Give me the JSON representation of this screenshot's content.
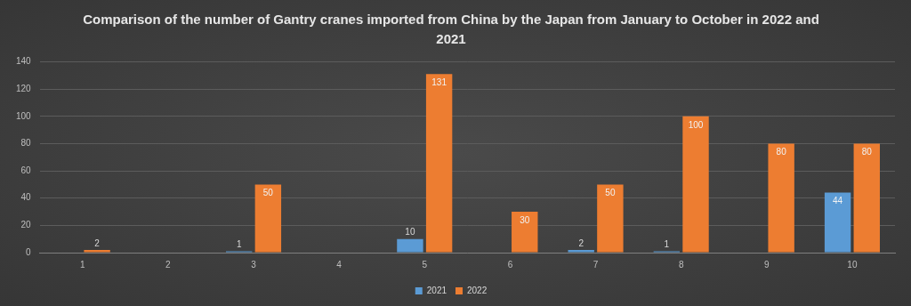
{
  "chart_data": {
    "type": "bar",
    "title": "Comparison of the number of Gantry cranes imported from China by the Japan from January to October in 2022 and 2021",
    "categories": [
      "1",
      "2",
      "3",
      "4",
      "5",
      "6",
      "7",
      "8",
      "9",
      "10"
    ],
    "series": [
      {
        "name": "2021",
        "color": "#5b9bd5",
        "values": [
          null,
          null,
          1,
          null,
          10,
          null,
          2,
          1,
          null,
          44
        ]
      },
      {
        "name": "2022",
        "color": "#ed7d31",
        "values": [
          2,
          null,
          50,
          null,
          131,
          30,
          50,
          100,
          80,
          80
        ]
      }
    ],
    "ylim": [
      0,
      140
    ],
    "yticks": [
      0,
      20,
      40,
      60,
      80,
      100,
      120,
      140
    ],
    "grid": true,
    "legend": "bottom",
    "data_labels": true
  }
}
